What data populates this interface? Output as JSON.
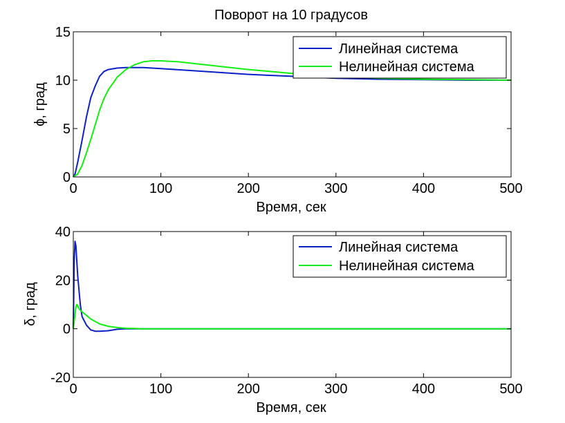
{
  "chart_data": [
    {
      "type": "line",
      "title": "Поворот на 10 градусов",
      "xlabel": "Время, сек",
      "ylabel": "ϕ, град",
      "xlim": [
        0,
        500
      ],
      "ylim": [
        0,
        15
      ],
      "xticks": [
        "0",
        "100",
        "200",
        "300",
        "400",
        "500"
      ],
      "yticks": [
        "0",
        "5",
        "10",
        "15"
      ],
      "grid": false,
      "legend_position": "top-right",
      "series": [
        {
          "name": "Линейная система",
          "color": "#0b1fc8",
          "x": [
            0,
            2,
            5,
            10,
            15,
            20,
            25,
            30,
            35,
            40,
            50,
            60,
            80,
            100,
            150,
            200,
            250,
            300,
            350,
            400,
            450,
            500
          ],
          "y": [
            0,
            0.3,
            1.5,
            3.8,
            6.2,
            8.2,
            9.4,
            10.4,
            10.9,
            11.1,
            11.25,
            11.3,
            11.3,
            11.2,
            10.9,
            10.6,
            10.4,
            10.2,
            10.1,
            10.05,
            10.0,
            10.0
          ]
        },
        {
          "name": "Нелинейная система",
          "color": "#12f012",
          "x": [
            0,
            5,
            10,
            15,
            20,
            25,
            30,
            35,
            40,
            50,
            60,
            70,
            80,
            90,
            100,
            120,
            150,
            200,
            250,
            300,
            350,
            400,
            450,
            500
          ],
          "y": [
            0,
            0.3,
            1.2,
            2.5,
            3.9,
            5.4,
            6.9,
            8.1,
            9.0,
            10.3,
            11.1,
            11.6,
            11.9,
            12.0,
            12.0,
            11.9,
            11.6,
            11.1,
            10.7,
            10.4,
            10.2,
            10.1,
            10.05,
            10.0
          ]
        }
      ]
    },
    {
      "type": "line",
      "title": "",
      "xlabel": "Время, сек",
      "ylabel": "δ, град",
      "xlim": [
        0,
        500
      ],
      "ylim": [
        -20,
        40
      ],
      "xticks": [
        "0",
        "100",
        "200",
        "300",
        "400",
        "500"
      ],
      "yticks": [
        "-20",
        "0",
        "20",
        "40"
      ],
      "grid": false,
      "legend_position": "top-right",
      "series": [
        {
          "name": "Линейная система",
          "color": "#0b1fc8",
          "x": [
            0,
            1,
            2,
            3,
            5,
            8,
            10,
            15,
            20,
            25,
            30,
            40,
            50,
            60,
            80,
            100,
            500
          ],
          "y": [
            0,
            28,
            36,
            34,
            22,
            10,
            5,
            1.5,
            -0.5,
            -1,
            -1,
            -0.8,
            -0.2,
            0,
            0,
            0,
            0
          ]
        },
        {
          "name": "Нелинейная система",
          "color": "#12f012",
          "x": [
            0,
            2,
            3,
            4,
            5,
            7,
            10,
            15,
            20,
            25,
            30,
            40,
            50,
            60,
            70,
            80,
            100,
            500
          ],
          "y": [
            0,
            6,
            9,
            10,
            9.5,
            8,
            7,
            5.5,
            4,
            3,
            2,
            1,
            0.5,
            0.2,
            0.1,
            0,
            0,
            0
          ]
        }
      ]
    }
  ]
}
